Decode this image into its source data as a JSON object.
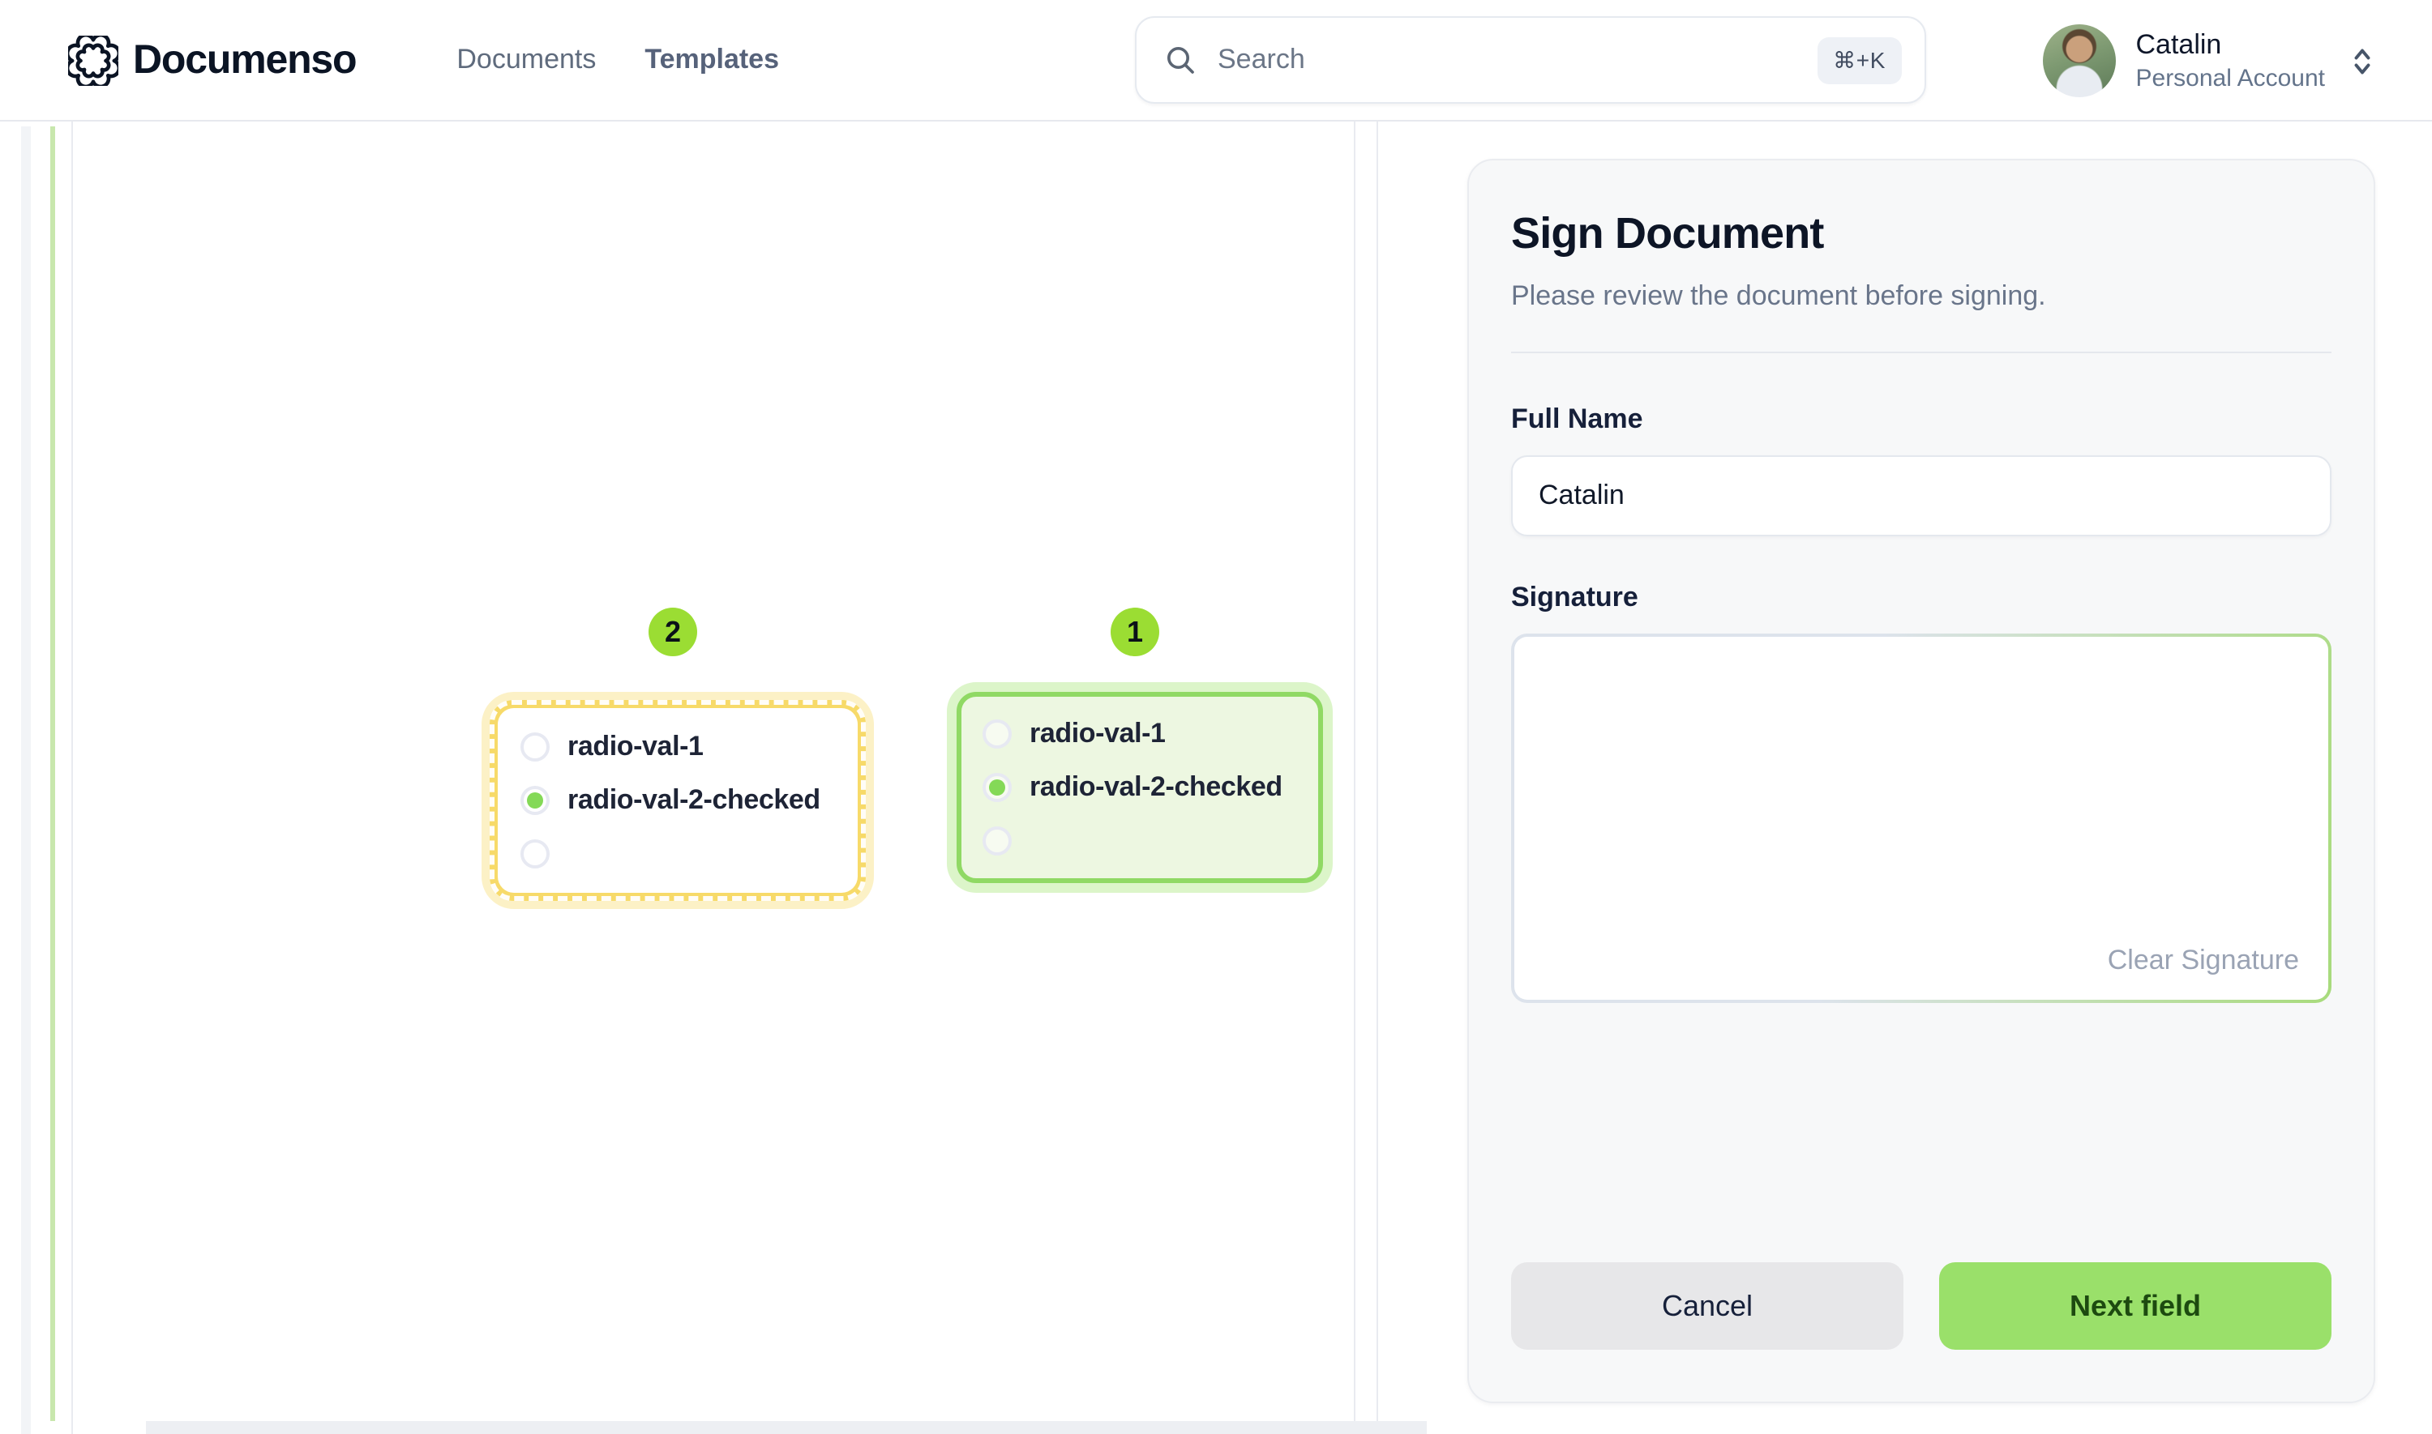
{
  "brand": {
    "name": "Documenso"
  },
  "nav": {
    "items": [
      {
        "label": "Documents"
      },
      {
        "label": "Templates"
      }
    ]
  },
  "search": {
    "placeholder": "Search",
    "shortcut": "⌘+K"
  },
  "user": {
    "name": "Catalin",
    "account_type": "Personal Account"
  },
  "document": {
    "fields": [
      {
        "order": "2",
        "state": "pending",
        "options": [
          {
            "label": "radio-val-1",
            "checked": false
          },
          {
            "label": "radio-val-2-checked",
            "checked": true
          },
          {
            "label": "",
            "checked": false
          }
        ]
      },
      {
        "order": "1",
        "state": "active",
        "options": [
          {
            "label": "radio-val-1",
            "checked": false
          },
          {
            "label": "radio-val-2-checked",
            "checked": true
          },
          {
            "label": "",
            "checked": false
          }
        ]
      }
    ]
  },
  "sign_panel": {
    "title": "Sign Document",
    "subtitle": "Please review the document before signing.",
    "full_name_label": "Full Name",
    "full_name_value": "Catalin",
    "signature_label": "Signature",
    "clear_signature_label": "Clear Signature",
    "cancel_label": "Cancel",
    "next_label": "Next field"
  },
  "colors": {
    "brand_lime": "#9bdd33",
    "checked_dot": "#84d957",
    "active_border": "#90d964",
    "active_bg": "#edf7e1",
    "pending_yellow": "#f7da69",
    "next_button_bg": "#9ae06a",
    "next_button_text": "#1d4a10",
    "cancel_bg": "#e7e7e9",
    "text_dark": "#0f172a",
    "text_muted": "#64748b"
  }
}
